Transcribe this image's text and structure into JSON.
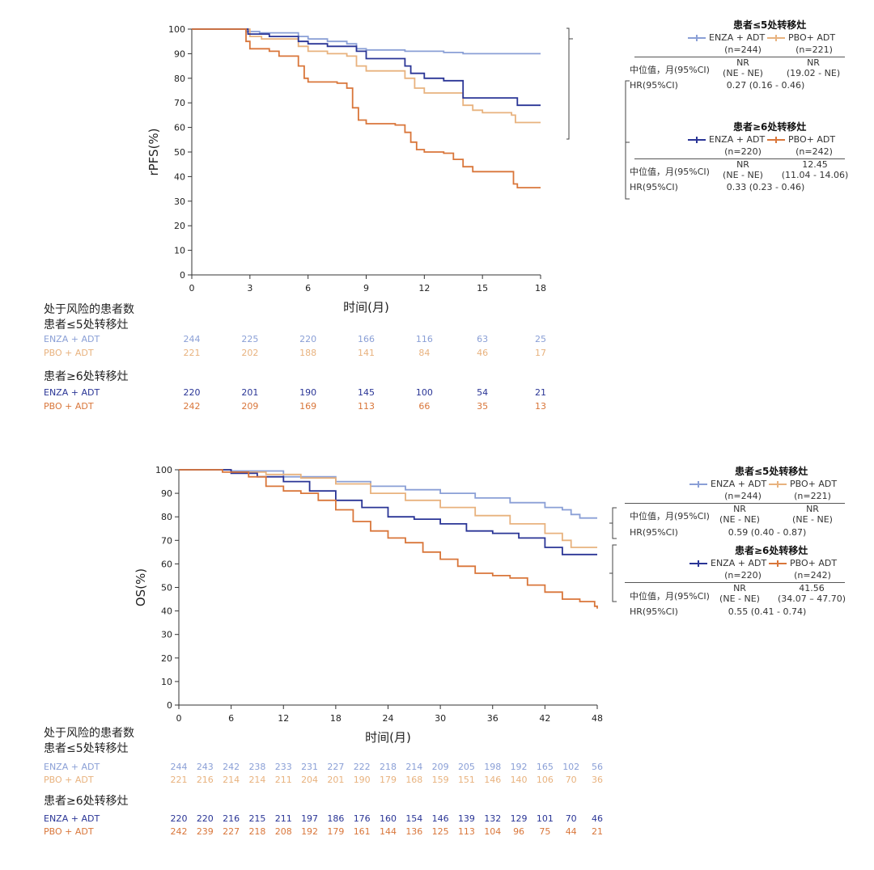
{
  "colors": {
    "enza_low": "#8a9fd6",
    "pbo_low": "#e8b27e",
    "enza_high": "#2a3596",
    "pbo_high": "#d9763a"
  },
  "chart_data": [
    {
      "type": "line",
      "ylabel": "rPFS(%)",
      "xlabel": "时间(月)",
      "xticks": [
        "0",
        "3",
        "6",
        "9",
        "12",
        "15",
        "18"
      ],
      "yticks": [
        "0",
        "10",
        "20",
        "30",
        "40",
        "50",
        "60",
        "70",
        "80",
        "90",
        "100"
      ],
      "xlim": [
        0,
        18
      ],
      "ylim": [
        0,
        100
      ],
      "series": [
        {
          "name": "ENZA + ADT",
          "group": "low",
          "color_key": "enza_low",
          "points": [
            [
              0,
              100
            ],
            [
              2.7,
              100
            ],
            [
              2.8,
              99
            ],
            [
              3.5,
              98.5
            ],
            [
              5.5,
              97
            ],
            [
              6,
              96
            ],
            [
              7,
              95
            ],
            [
              8,
              94
            ],
            [
              8.5,
              92
            ],
            [
              9,
              91.5
            ],
            [
              10,
              91.5
            ],
            [
              11,
              91
            ],
            [
              12,
              91
            ],
            [
              12.8,
              91
            ],
            [
              13,
              90.5
            ],
            [
              14,
              90
            ],
            [
              18,
              90
            ]
          ]
        },
        {
          "name": "PBO+ ADT",
          "group": "low",
          "color_key": "pbo_low",
          "points": [
            [
              0,
              100
            ],
            [
              2.7,
              100
            ],
            [
              3,
              97
            ],
            [
              3.6,
              96
            ],
            [
              5.5,
              93
            ],
            [
              6,
              91
            ],
            [
              7,
              90
            ],
            [
              8,
              89
            ],
            [
              8.5,
              85
            ],
            [
              9,
              83
            ],
            [
              10.5,
              83
            ],
            [
              11,
              80
            ],
            [
              11.5,
              76
            ],
            [
              12,
              74
            ],
            [
              13.5,
              74
            ],
            [
              14,
              69
            ],
            [
              14.5,
              67
            ],
            [
              15,
              66
            ],
            [
              16.5,
              65
            ],
            [
              16.7,
              62
            ],
            [
              18,
              62
            ]
          ]
        },
        {
          "name": "ENZA + ADT",
          "group": "high",
          "color_key": "enza_high",
          "points": [
            [
              0,
              100
            ],
            [
              2.7,
              100
            ],
            [
              2.9,
              98
            ],
            [
              4,
              97
            ],
            [
              5.5,
              95
            ],
            [
              6,
              94
            ],
            [
              7,
              93
            ],
            [
              8.5,
              91
            ],
            [
              9,
              88
            ],
            [
              10.5,
              88
            ],
            [
              11,
              85
            ],
            [
              11.3,
              82
            ],
            [
              12,
              80
            ],
            [
              13,
              79
            ],
            [
              13.8,
              79
            ],
            [
              14,
              72
            ],
            [
              16.5,
              72
            ],
            [
              16.8,
              69
            ],
            [
              18,
              69
            ]
          ]
        },
        {
          "name": "PBO+ ADT",
          "group": "high",
          "color_key": "pbo_high",
          "points": [
            [
              0,
              100
            ],
            [
              2.6,
              100
            ],
            [
              2.8,
              95
            ],
            [
              3,
              92
            ],
            [
              4,
              91
            ],
            [
              4.5,
              89
            ],
            [
              5.5,
              85
            ],
            [
              5.8,
              80
            ],
            [
              6,
              78.5
            ],
            [
              7.5,
              78
            ],
            [
              8,
              76
            ],
            [
              8.3,
              68
            ],
            [
              8.6,
              63
            ],
            [
              9,
              61.5
            ],
            [
              10.5,
              61
            ],
            [
              11,
              58
            ],
            [
              11.3,
              54
            ],
            [
              11.6,
              51
            ],
            [
              12,
              50
            ],
            [
              13,
              49.5
            ],
            [
              13.5,
              47
            ],
            [
              14,
              44
            ],
            [
              14.5,
              42
            ],
            [
              16.5,
              42
            ],
            [
              16.6,
              37
            ],
            [
              16.8,
              35.5
            ],
            [
              18,
              35.5
            ]
          ]
        }
      ]
    },
    {
      "type": "line",
      "ylabel": "OS(%)",
      "xlabel": "时间(月)",
      "xticks": [
        "0",
        "6",
        "12",
        "18",
        "24",
        "30",
        "36",
        "42",
        "48"
      ],
      "yticks": [
        "0",
        "10",
        "20",
        "30",
        "40",
        "50",
        "60",
        "70",
        "80",
        "90",
        "100"
      ],
      "xlim": [
        0,
        48
      ],
      "ylim": [
        0,
        100
      ],
      "series": [
        {
          "name": "ENZA + ADT",
          "group": "low",
          "color_key": "enza_low",
          "points": [
            [
              0,
              100
            ],
            [
              6,
              99.5
            ],
            [
              12,
              97
            ],
            [
              18,
              95
            ],
            [
              22,
              93
            ],
            [
              26,
              91.5
            ],
            [
              30,
              90
            ],
            [
              34,
              88
            ],
            [
              38,
              86
            ],
            [
              42,
              84
            ],
            [
              44,
              83
            ],
            [
              45,
              81
            ],
            [
              46,
              79.5
            ],
            [
              48,
              79.5
            ]
          ]
        },
        {
          "name": "PBO+ ADT",
          "group": "low",
          "color_key": "pbo_low",
          "points": [
            [
              0,
              100
            ],
            [
              6,
              99
            ],
            [
              10,
              98
            ],
            [
              14,
              96.5
            ],
            [
              18,
              94
            ],
            [
              22,
              90
            ],
            [
              26,
              87
            ],
            [
              30,
              84
            ],
            [
              34,
              80.5
            ],
            [
              38,
              77
            ],
            [
              42,
              73
            ],
            [
              44,
              70
            ],
            [
              45,
              67
            ],
            [
              48,
              67
            ]
          ]
        },
        {
          "name": "ENZA + ADT",
          "group": "high",
          "color_key": "enza_high",
          "points": [
            [
              0,
              100
            ],
            [
              6,
              98.5
            ],
            [
              9,
              97
            ],
            [
              12,
              95
            ],
            [
              15,
              91
            ],
            [
              18,
              87
            ],
            [
              21,
              84
            ],
            [
              24,
              80
            ],
            [
              27,
              79
            ],
            [
              30,
              77
            ],
            [
              33,
              74
            ],
            [
              36,
              73
            ],
            [
              39,
              71
            ],
            [
              42,
              67
            ],
            [
              44,
              64
            ],
            [
              48,
              64
            ]
          ]
        },
        {
          "name": "PBO+ ADT",
          "group": "high",
          "color_key": "pbo_high",
          "points": [
            [
              0,
              100
            ],
            [
              5,
              99
            ],
            [
              8,
              97
            ],
            [
              10,
              93
            ],
            [
              12,
              91
            ],
            [
              14,
              90
            ],
            [
              16,
              87
            ],
            [
              18,
              83
            ],
            [
              20,
              78
            ],
            [
              22,
              74
            ],
            [
              24,
              71
            ],
            [
              26,
              69
            ],
            [
              28,
              65
            ],
            [
              30,
              62
            ],
            [
              32,
              59
            ],
            [
              34,
              56
            ],
            [
              36,
              55
            ],
            [
              38,
              54
            ],
            [
              40,
              51
            ],
            [
              42,
              48
            ],
            [
              44,
              45
            ],
            [
              46,
              44
            ],
            [
              47.7,
              42
            ],
            [
              48,
              41
            ]
          ]
        }
      ]
    }
  ],
  "rpfs": {
    "risk": {
      "heading_1": "处于风险的患者数",
      "heading_2": "患者≤5处转移灶",
      "heading_3": "患者≥6处转移灶",
      "rows": [
        {
          "label": "ENZA + ADT",
          "color_key": "enza_low",
          "values": [
            "244",
            "225",
            "220",
            "166",
            "116",
            "63",
            "25"
          ]
        },
        {
          "label": "PBO + ADT",
          "color_key": "pbo_low",
          "values": [
            "221",
            "202",
            "188",
            "141",
            "84",
            "46",
            "17"
          ]
        },
        {
          "label": "ENZA + ADT",
          "color_key": "enza_high",
          "values": [
            "220",
            "201",
            "190",
            "145",
            "100",
            "54",
            "21"
          ]
        },
        {
          "label": "PBO + ADT",
          "color_key": "pbo_high",
          "values": [
            "242",
            "209",
            "169",
            "113",
            "66",
            "35",
            "13"
          ]
        }
      ]
    },
    "legend": {
      "low_title": "患者≤5处转移灶",
      "low_enza": "ENZA + ADT",
      "low_enza_n": "(n=244)",
      "low_pbo": "PBO+ ADT",
      "low_pbo_n": "(n=221)",
      "median_label": "中位值，月(95%CI)",
      "low_median_enza_1": "NR",
      "low_median_enza_2": "(NE - NE)",
      "low_median_pbo_1": "NR",
      "low_median_pbo_2": "(19.02 - NE)",
      "hr_label": "HR(95%CI)",
      "low_hr": "0.27 (0.16 - 0.46)",
      "high_title": "患者≥6处转移灶",
      "high_enza": "ENZA + ADT",
      "high_enza_n": "(n=220)",
      "high_pbo": "PBO+ ADT",
      "high_pbo_n": "(n=242)",
      "high_median_enza_1": "NR",
      "high_median_enza_2": "(NE - NE)",
      "high_median_pbo_1": "12.45",
      "high_median_pbo_2": "(11.04 - 14.06)",
      "high_hr": "0.33 (0.23 - 0.46)"
    }
  },
  "os": {
    "risk": {
      "heading_1": "处于风险的患者数",
      "heading_2": "患者≤5处转移灶",
      "heading_3": "患者≥6处转移灶",
      "rows": [
        {
          "label": "ENZA + ADT",
          "color_key": "enza_low",
          "values": [
            "244",
            "243",
            "242",
            "238",
            "233",
            "231",
            "227",
            "222",
            "218",
            "214",
            "209",
            "205",
            "198",
            "192",
            "165",
            "102",
            "56"
          ]
        },
        {
          "label": "PBO + ADT",
          "color_key": "pbo_low",
          "values": [
            "221",
            "216",
            "214",
            "214",
            "211",
            "204",
            "201",
            "190",
            "179",
            "168",
            "159",
            "151",
            "146",
            "140",
            "106",
            "70",
            "36"
          ]
        },
        {
          "label": "ENZA + ADT",
          "color_key": "enza_high",
          "values": [
            "220",
            "220",
            "216",
            "215",
            "211",
            "197",
            "186",
            "176",
            "160",
            "154",
            "146",
            "139",
            "132",
            "129",
            "101",
            "70",
            "46"
          ]
        },
        {
          "label": "PBO + ADT",
          "color_key": "pbo_high",
          "values": [
            "242",
            "239",
            "227",
            "218",
            "208",
            "192",
            "179",
            "161",
            "144",
            "136",
            "125",
            "113",
            "104",
            "96",
            "75",
            "44",
            "21"
          ]
        }
      ]
    },
    "legend": {
      "low_title": "患者≤5处转移灶",
      "low_enza": "ENZA + ADT",
      "low_enza_n": "(n=244)",
      "low_pbo": "PBO+ ADT",
      "low_pbo_n": "(n=221)",
      "median_label": "中位值，月(95%CI)",
      "low_median_enza_1": "NR",
      "low_median_enza_2": "(NE - NE)",
      "low_median_pbo_1": "NR",
      "low_median_pbo_2": "(NE - NE)",
      "hr_label": "HR(95%CI)",
      "low_hr": "0.59 (0.40 - 0.87)",
      "high_title": "患者≥6处转移灶",
      "high_enza": "ENZA + ADT",
      "high_enza_n": "(n=220)",
      "high_pbo": "PBO+ ADT",
      "high_pbo_n": "(n=242)",
      "high_median_enza_1": "NR",
      "high_median_enza_2": "(NE - NE)",
      "high_median_pbo_1": "41.56",
      "high_median_pbo_2": "(34.07 – 47.70)",
      "high_hr": "0.55 (0.41 - 0.74)"
    }
  }
}
